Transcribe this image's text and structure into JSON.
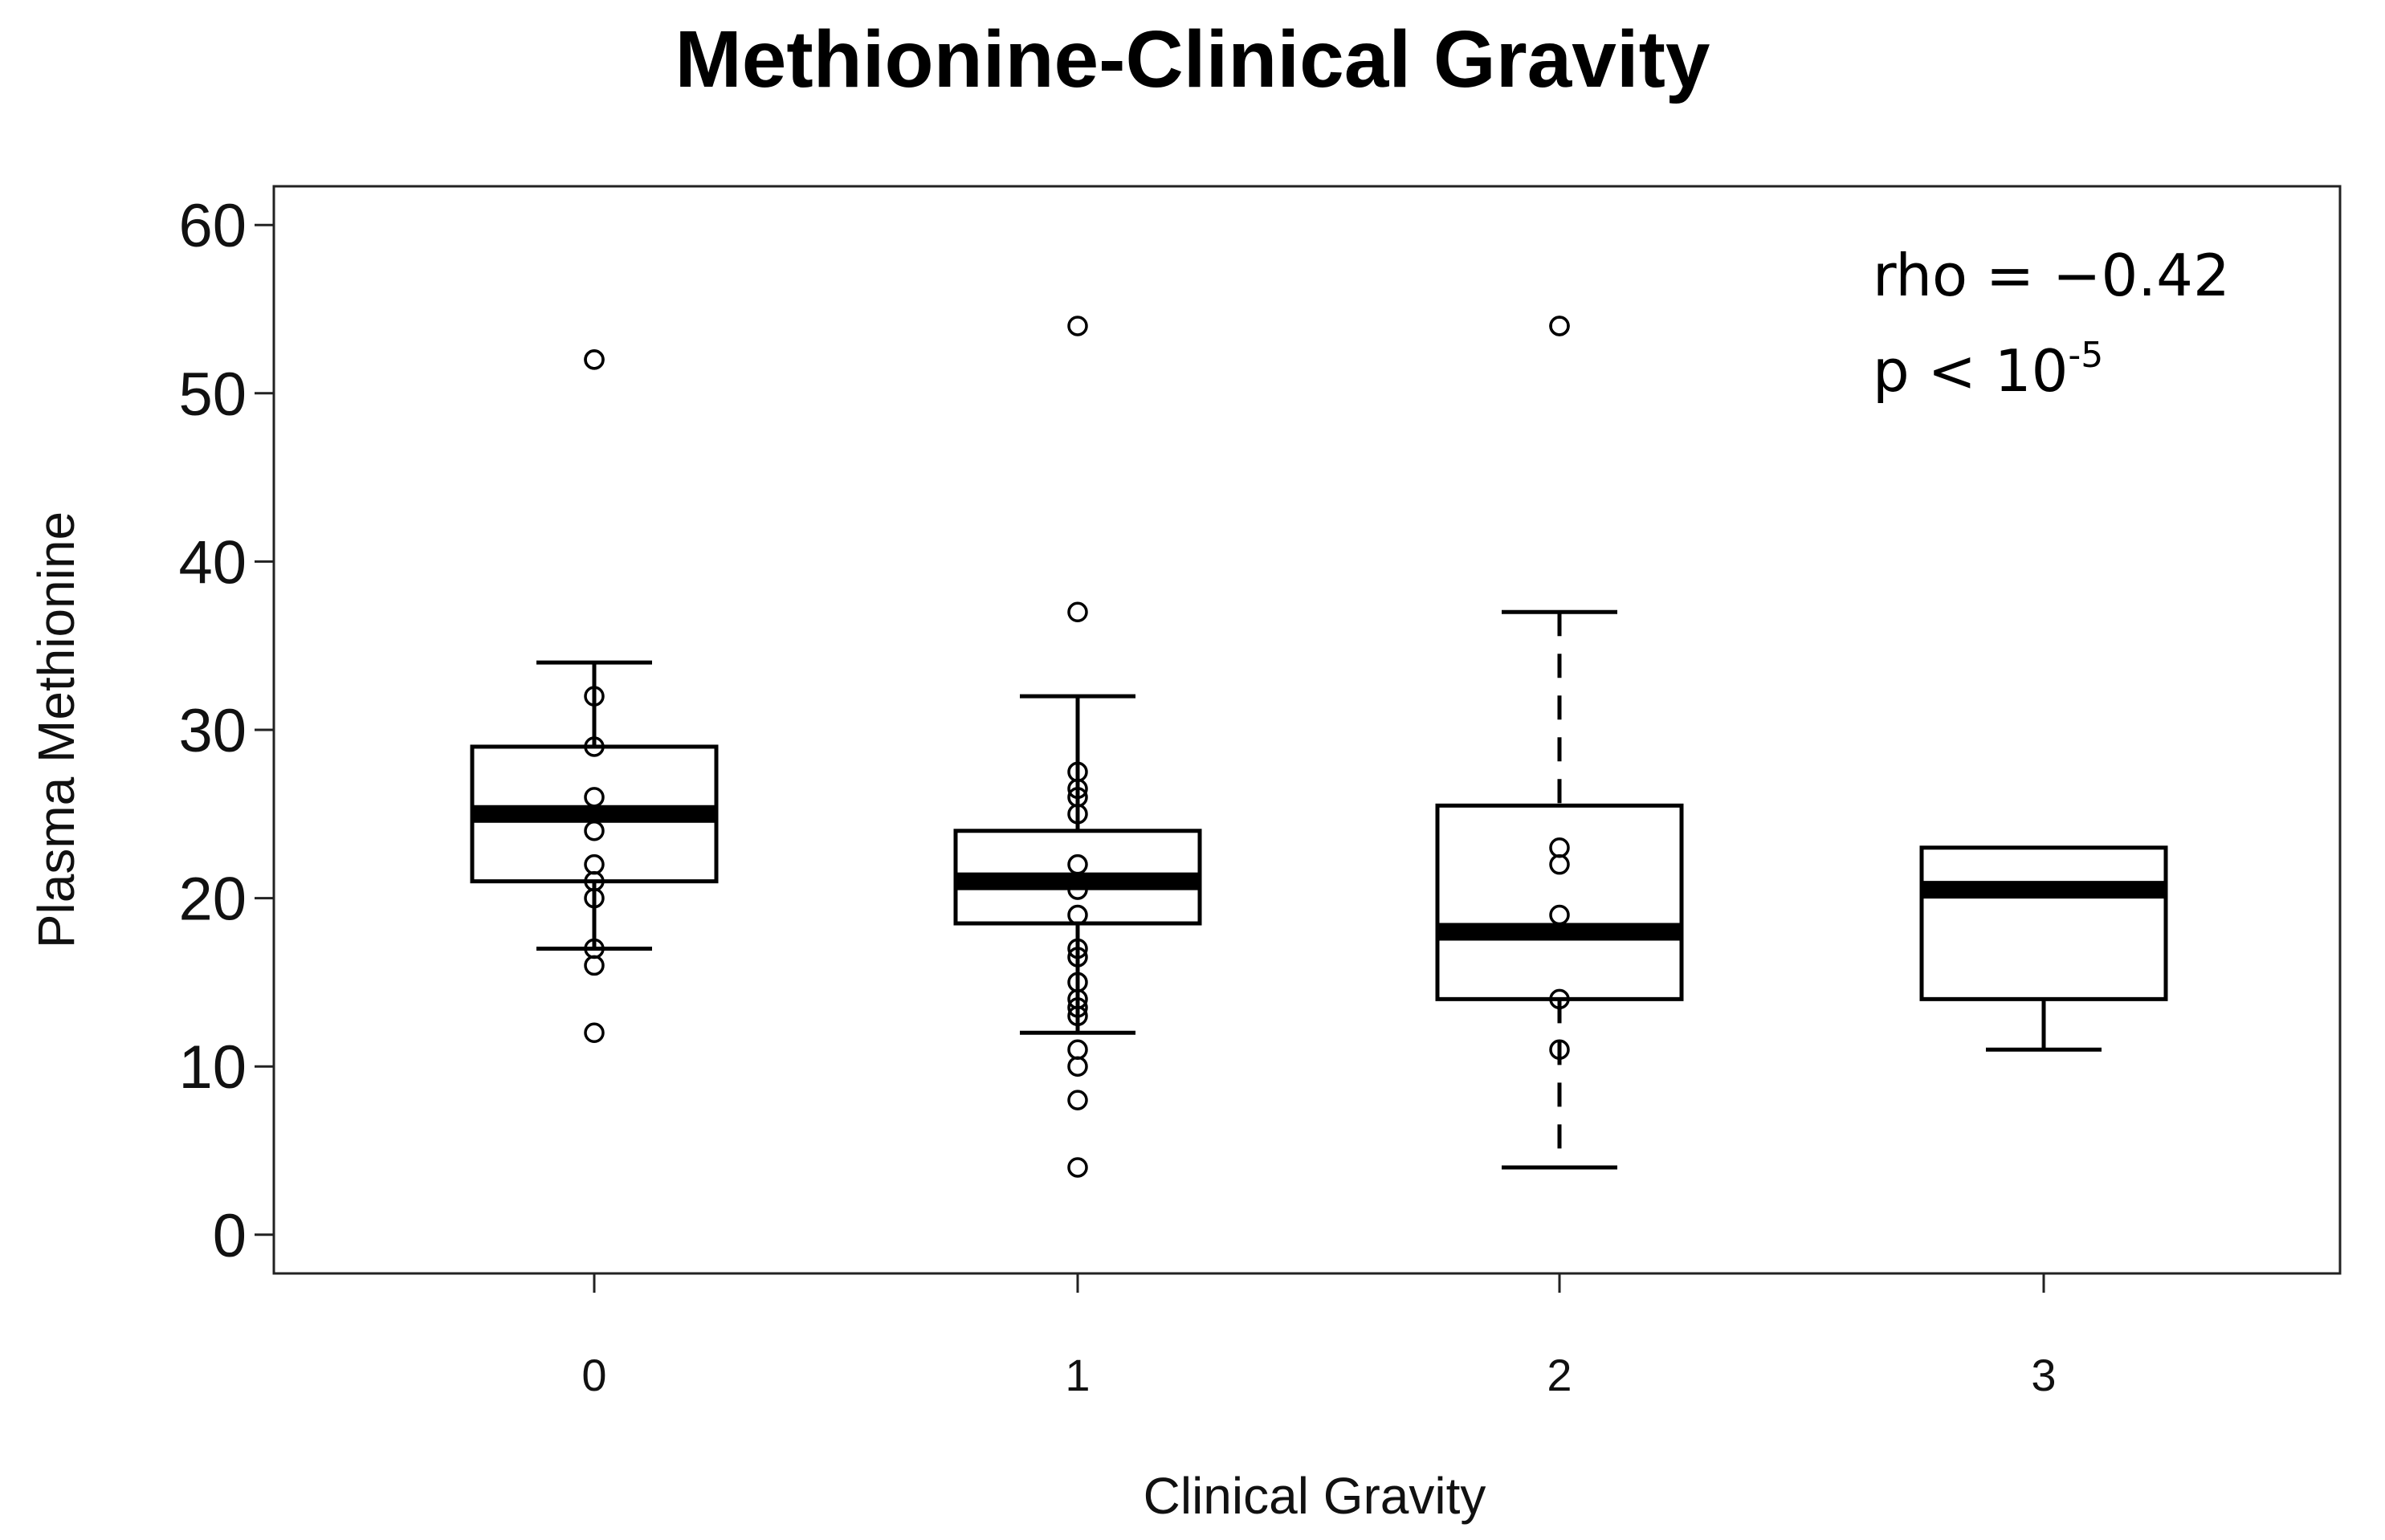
{
  "chart_data": {
    "type": "box",
    "title": "Methionine-Clinical Gravity",
    "xlabel": "Clinical Gravity",
    "ylabel": "Plasma Methionine",
    "categories": [
      "0",
      "1",
      "2",
      "3"
    ],
    "y_ticks": [
      "0",
      "10",
      "20",
      "30",
      "40",
      "50",
      "60"
    ],
    "ylim": [
      -2.3,
      62.3
    ],
    "grid": false,
    "boxes": [
      {
        "category": "0",
        "whisker_low": 17,
        "q1": 21,
        "median": 25,
        "q3": 29,
        "whisker_high": 34,
        "dashed_whiskers": false
      },
      {
        "category": "1",
        "whisker_low": 12,
        "q1": 18.5,
        "median": 21,
        "q3": 24,
        "whisker_high": 32,
        "dashed_whiskers": false
      },
      {
        "category": "2",
        "whisker_low": 4,
        "q1": 14,
        "median": 18,
        "q3": 25.5,
        "whisker_high": 37,
        "dashed_whiskers": true
      },
      {
        "category": "3",
        "whisker_low": 11,
        "q1": 14,
        "median": 20.5,
        "q3": 23,
        "whisker_high": 23,
        "dashed_whiskers": false
      }
    ],
    "points": [
      {
        "category": "0",
        "values": [
          52,
          52,
          32,
          29,
          26,
          24,
          22,
          21,
          20,
          17,
          16,
          12
        ]
      },
      {
        "category": "1",
        "values": [
          54,
          37,
          27.5,
          26.5,
          26,
          25,
          22,
          20.5,
          19,
          17,
          16.5,
          15,
          14,
          13.5,
          13,
          11,
          10,
          8,
          4
        ]
      },
      {
        "category": "2",
        "values": [
          54,
          54,
          23,
          22,
          19,
          14,
          11
        ]
      },
      {
        "category": "3",
        "values": []
      }
    ],
    "annotation": {
      "rho_text": "rho = −0.42",
      "p_text": "p < 10",
      "p_exponent": "-5"
    }
  }
}
